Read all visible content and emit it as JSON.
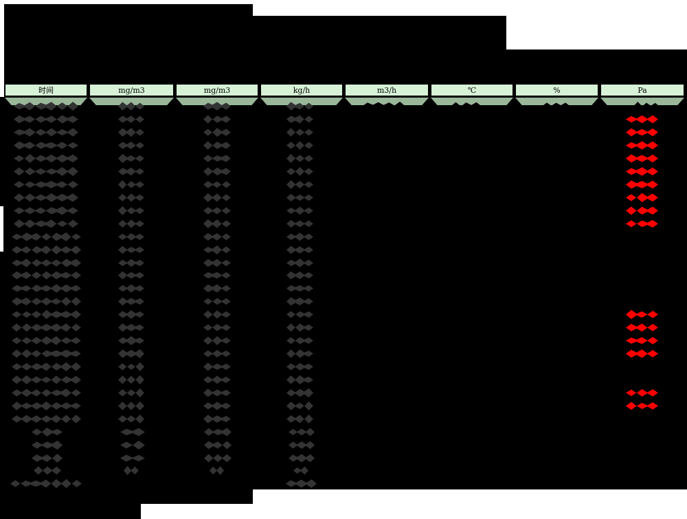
{
  "table": {
    "unit_headers": [
      "时间",
      "mg/m3",
      "mg/m3",
      "kg/h",
      "m3/h",
      "℃",
      "%",
      "Pa"
    ],
    "data_row_count": 25,
    "red_value_row_indices": [
      1,
      2,
      3,
      4,
      5,
      6,
      7,
      8,
      9,
      16,
      17,
      18,
      19,
      22,
      23
    ],
    "summary_row_count": 5
  },
  "colors": {
    "redaction_black": "#000000",
    "redacted_text_dim": "#333333",
    "alert_red": "#ff0000",
    "header_cell_bg": "#d7f2d7",
    "header_band_bg": "#9ab79a",
    "header_border": "#000000",
    "page_bg": "#ffffff"
  }
}
